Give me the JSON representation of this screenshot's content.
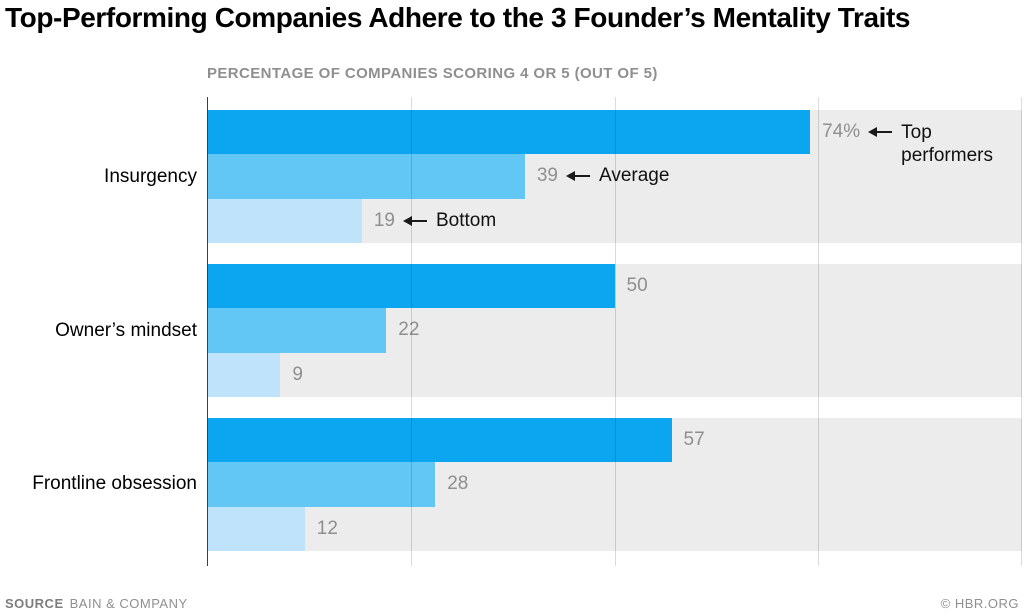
{
  "header": {
    "title": "Top-Performing Companies Adhere to the 3 Founder’s Mentality Traits",
    "subtitle": "PERCENTAGE OF COMPANIES SCORING 4 OR 5 (OUT OF 5)"
  },
  "footer": {
    "source_label": "SOURCE",
    "source_value": "BAIN & COMPANY",
    "credit": "© HBR.ORG"
  },
  "colors": {
    "top_performers": "#0ca5ef",
    "average": "#63c7f6",
    "bottom": "#bfe3fb",
    "band_background": "#ececec",
    "value_text": "#8f8f8f"
  },
  "chart_data": {
    "type": "bar",
    "orientation": "horizontal",
    "title": "Top-Performing Companies Adhere to the 3 Founder’s Mentality Traits",
    "subtitle": "PERCENTAGE OF COMPANIES SCORING 4 OR 5 (OUT OF 5)",
    "xlim": [
      0,
      100
    ],
    "gridlines": [
      0,
      25,
      50,
      75,
      100
    ],
    "grid": "on",
    "legend_position": "inline-annotations-first-group",
    "categories": [
      "Insurgency",
      "Owner’s mindset",
      "Frontline obsession"
    ],
    "series": [
      {
        "name": "Top performers",
        "values": [
          74,
          50,
          57
        ]
      },
      {
        "name": "Average",
        "values": [
          39,
          22,
          28
        ]
      },
      {
        "name": "Bottom",
        "values": [
          19,
          9,
          12
        ]
      }
    ],
    "rows": [
      {
        "category": "Insurgency",
        "bars": [
          {
            "label": "74%",
            "value": 74,
            "annotation": "Top performers"
          },
          {
            "label": "39",
            "value": 39,
            "annotation": "Average"
          },
          {
            "label": "19",
            "value": 19,
            "annotation": "Bottom"
          }
        ]
      },
      {
        "category": "Owner’s mindset",
        "bars": [
          {
            "label": "50",
            "value": 50
          },
          {
            "label": "22",
            "value": 22
          },
          {
            "label": "9",
            "value": 9
          }
        ]
      },
      {
        "category": "Frontline obsession",
        "bars": [
          {
            "label": "57",
            "value": 57
          },
          {
            "label": "28",
            "value": 28
          },
          {
            "label": "12",
            "value": 12
          }
        ]
      }
    ]
  }
}
